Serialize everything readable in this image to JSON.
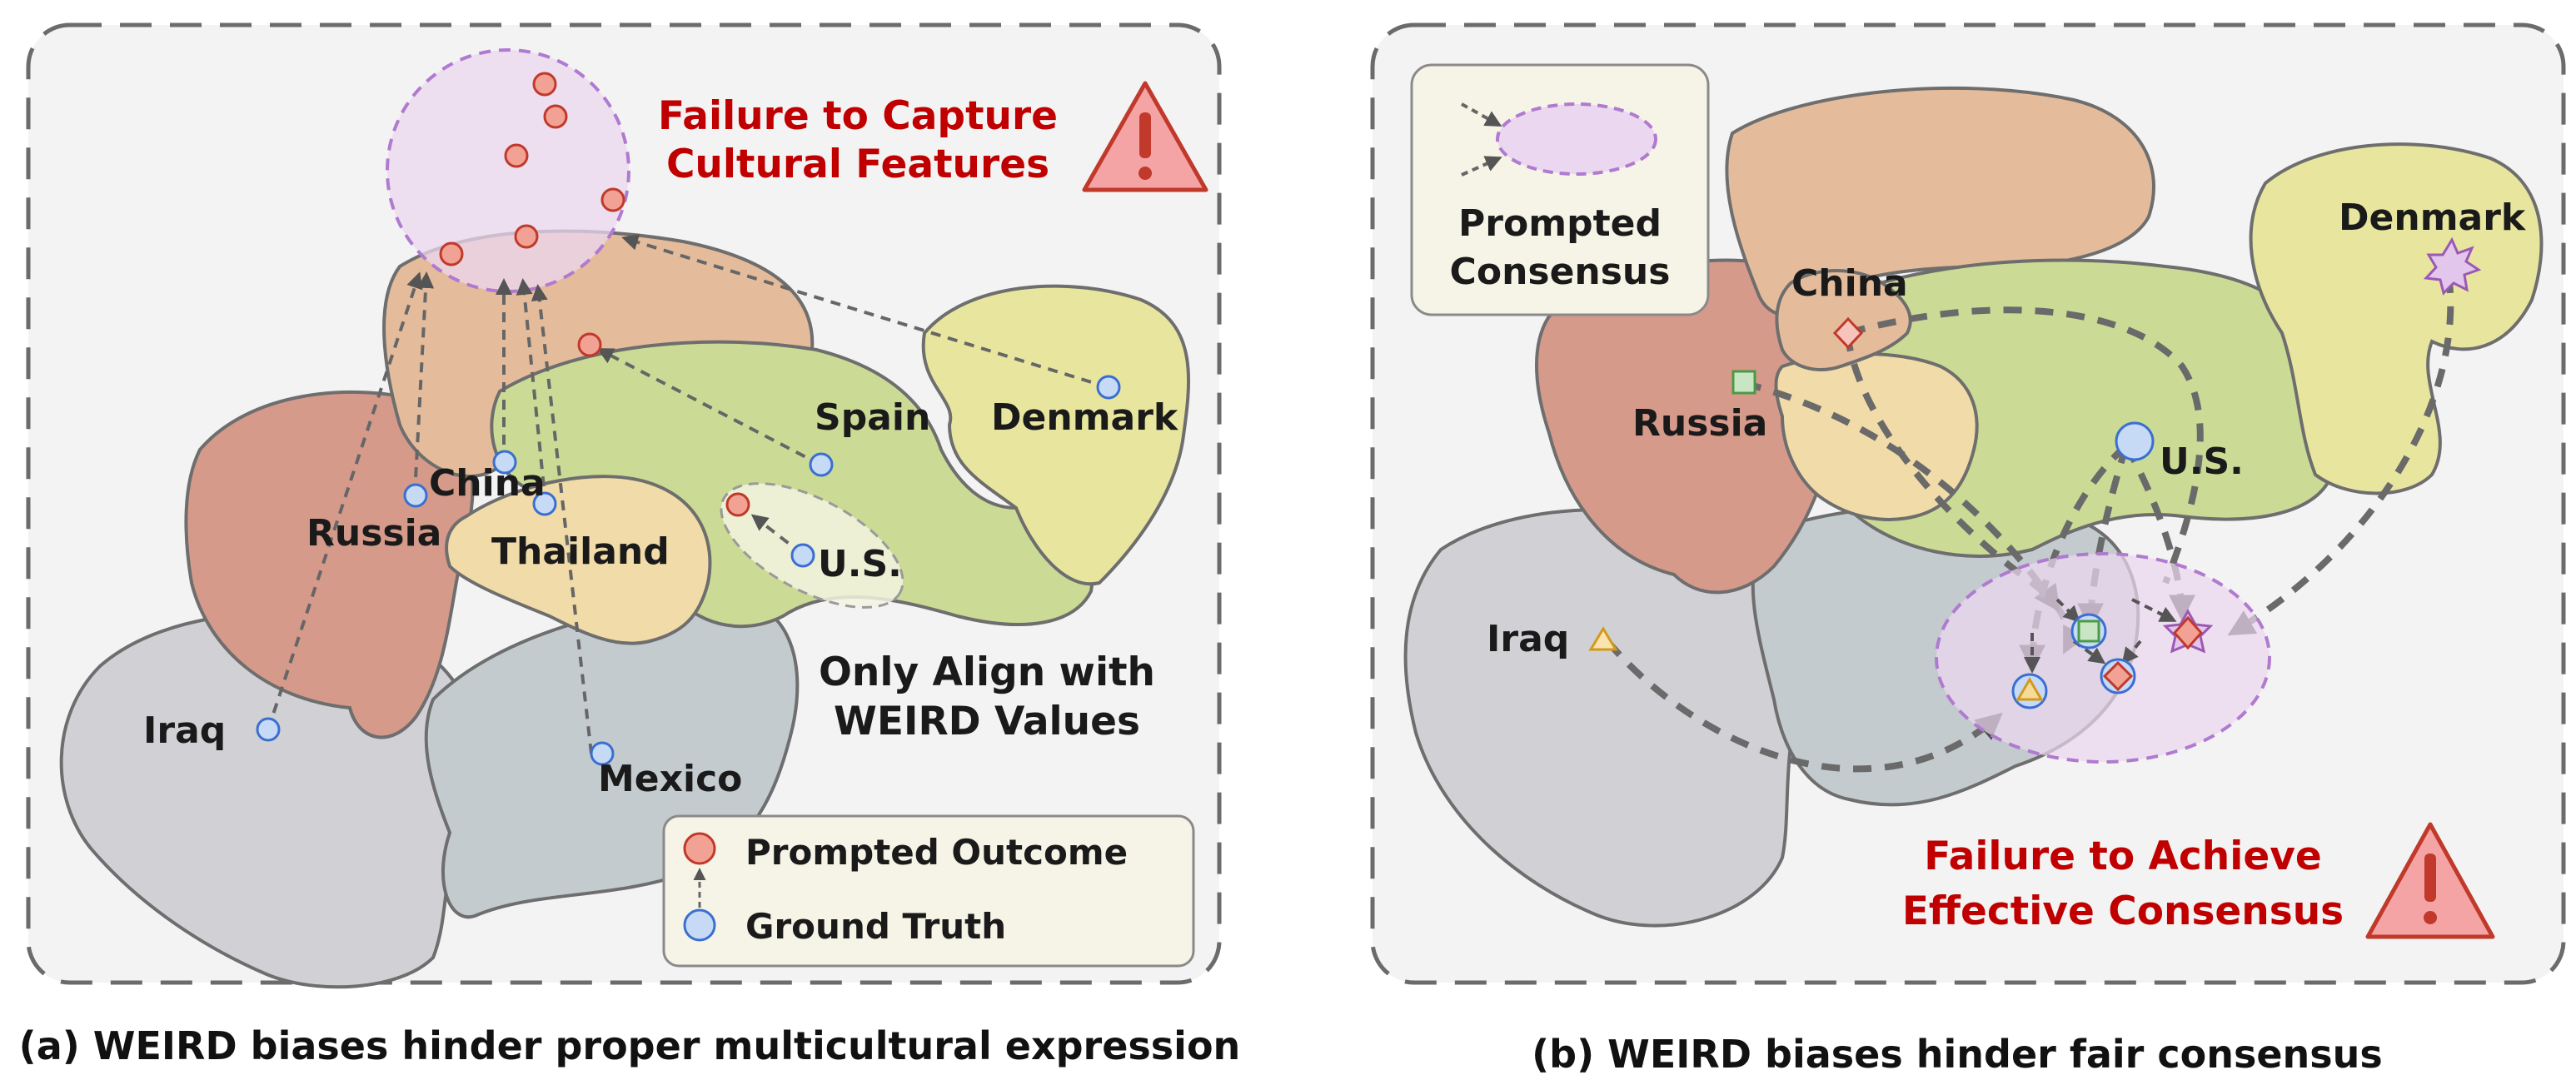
{
  "panel_a": {
    "warning_title_line1": "Failure to Capture",
    "warning_title_line2": "Cultural Features",
    "weird_line1": "Only Align with",
    "weird_line2": "WEIRD Values",
    "legend": {
      "prompted_outcome": "Prompted Outcome",
      "ground_truth": "Ground Truth"
    },
    "countries": {
      "denmark": "Denmark",
      "spain": "Spain",
      "china": "China",
      "russia": "Russia",
      "thailand": "Thailand",
      "us": "U.S.",
      "iraq": "Iraq",
      "mexico": "Mexico"
    },
    "caption": "(a) WEIRD biases hinder proper multicultural expression"
  },
  "panel_b": {
    "legend_line1": "Prompted",
    "legend_line2": "Consensus",
    "warning_title_line1": "Failure to Achieve",
    "warning_title_line2": "Effective Consensus",
    "countries": {
      "denmark": "Denmark",
      "china": "China",
      "russia": "Russia",
      "us": "U.S.",
      "iraq": "Iraq"
    },
    "caption": "(b) WEIRD biases hinder fair consensus"
  },
  "colors": {
    "red_text": "#c00000",
    "marker_red": "#f2a294",
    "marker_blue": "#c7daf5",
    "region_peach": "#e3b896",
    "region_rose": "#d49585",
    "region_green": "#c9d98f",
    "region_yellow": "#e6e69a",
    "region_sand": "#f1d9a6",
    "region_gray": "#cfcfd4",
    "region_slate": "#bfc8cc",
    "consensus_purple": "#b07ad0"
  }
}
